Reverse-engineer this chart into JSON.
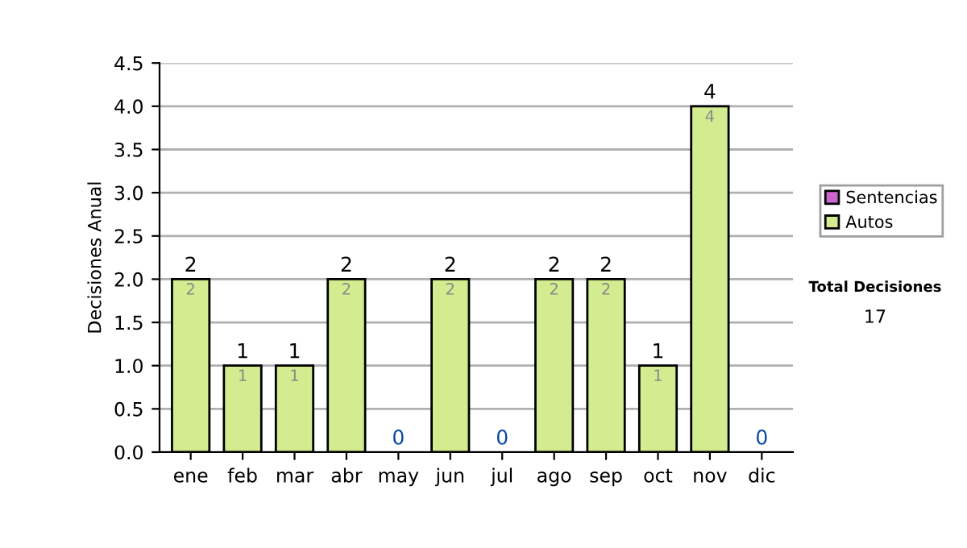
{
  "chart_data": {
    "type": "bar",
    "ylabel": "Decisiones Anual",
    "stacked": true,
    "categories": [
      "ene",
      "feb",
      "mar",
      "abr",
      "may",
      "jun",
      "jul",
      "ago",
      "sep",
      "oct",
      "nov",
      "dic"
    ],
    "series": [
      {
        "name": "Sentencias",
        "color": "#cc66cc",
        "values": [
          0,
          0,
          0,
          0,
          0,
          0,
          0,
          0,
          0,
          0,
          0,
          0
        ]
      },
      {
        "name": "Autos",
        "color": "#d4ec90",
        "values": [
          2,
          1,
          1,
          2,
          0,
          2,
          0,
          2,
          2,
          1,
          4,
          0
        ],
        "value_labels": [
          "2",
          "1",
          "1",
          "2",
          null,
          "2",
          null,
          "2",
          "2",
          "1",
          "4",
          null
        ]
      }
    ],
    "totals": [
      "2",
      "1",
      "1",
      "2",
      "0",
      "2",
      "0",
      "2",
      "2",
      "1",
      "4",
      "0"
    ],
    "ylim": [
      0,
      4.5
    ],
    "yticks": [
      {
        "value": 0,
        "label": "0.0"
      },
      {
        "value": 0.5,
        "label": "0.5"
      },
      {
        "value": 1,
        "label": "1.0"
      },
      {
        "value": 1.5,
        "label": "1.5"
      },
      {
        "value": 2,
        "label": "2.0"
      },
      {
        "value": 2.5,
        "label": "2.5"
      },
      {
        "value": 3,
        "label": "3.0"
      },
      {
        "value": 3.5,
        "label": "3.5"
      },
      {
        "value": 4,
        "label": "4.0"
      },
      {
        "value": 4.5,
        "label": "4.5"
      }
    ],
    "grid": "y",
    "legend": "right",
    "annotations": [
      "Total Decisiones",
      "17"
    ]
  }
}
